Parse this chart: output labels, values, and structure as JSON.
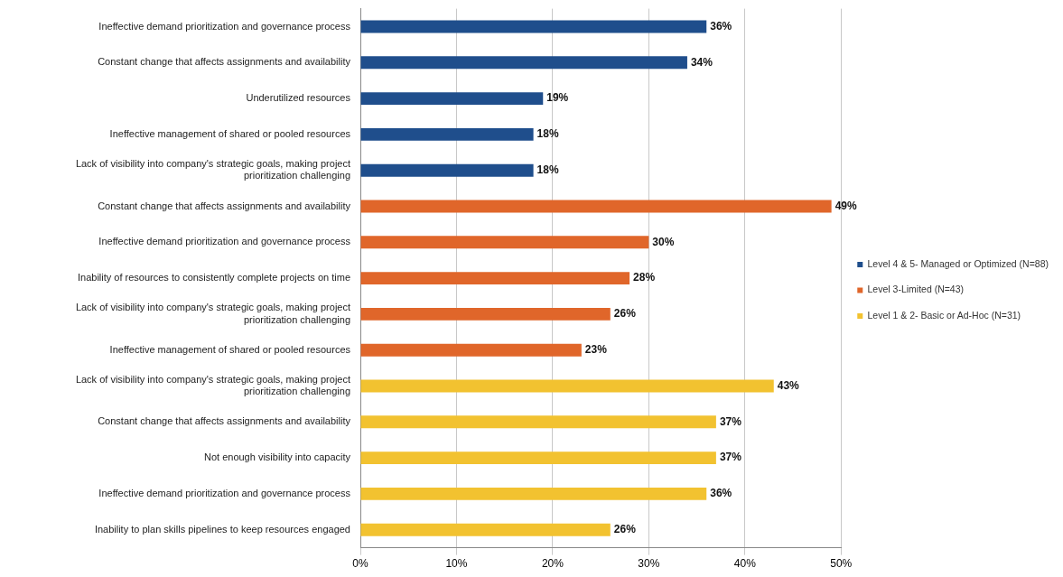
{
  "chart_data": {
    "type": "bar",
    "orientation": "horizontal",
    "categories": [
      "Ineffective demand prioritization and governance process",
      "Constant change that affects assignments and availability",
      "Underutilized resources",
      "Ineffective management of shared or pooled resources",
      "Lack of visibility into company's strategic goals, making project prioritization challenging",
      "Constant change that affects assignments and availability",
      "Ineffective demand prioritization and governance process",
      "Inability of resources to consistently complete projects on time",
      "Lack of visibility into company's strategic goals, making project prioritization challenging",
      "Ineffective management of shared or pooled resources",
      "Lack of visibility into company's strategic goals, making project prioritization challenging",
      "Constant change that affects assignments and availability",
      "Not enough visibility into capacity",
      "Ineffective demand prioritization and governance process",
      "Inability to plan skills pipelines to keep resources engaged"
    ],
    "series": [
      {
        "name": "Level 4 & 5- Managed or Optimized (N=88)",
        "color": "#1f4e8c",
        "values": [
          36,
          34,
          19,
          18,
          18,
          null,
          null,
          null,
          null,
          null,
          null,
          null,
          null,
          null,
          null
        ],
        "value_labels": [
          "36%",
          "34%",
          "19%",
          "18%",
          "18%",
          null,
          null,
          null,
          null,
          null,
          null,
          null,
          null,
          null,
          null
        ]
      },
      {
        "name": "Level 3-Limited (N=43)",
        "color": "#e0662a",
        "values": [
          null,
          null,
          null,
          null,
          null,
          49,
          30,
          28,
          26,
          23,
          null,
          null,
          null,
          null,
          null
        ],
        "value_labels": [
          null,
          null,
          null,
          null,
          null,
          "49%",
          "30%",
          "28%",
          "26%",
          "23%",
          null,
          null,
          null,
          null,
          null
        ]
      },
      {
        "name": "Level 1 & 2- Basic or Ad-Hoc (N=31)",
        "color": "#f2c230",
        "values": [
          null,
          null,
          null,
          null,
          null,
          null,
          null,
          null,
          null,
          null,
          43,
          37,
          37,
          36,
          26
        ],
        "value_labels": [
          null,
          null,
          null,
          null,
          null,
          null,
          null,
          null,
          null,
          null,
          "43%",
          "37%",
          "37%",
          "36%",
          "26%"
        ]
      }
    ],
    "xlim": [
      0,
      50
    ],
    "xticks": [
      {
        "value": 0,
        "label": "0%"
      },
      {
        "value": 10,
        "label": "10%"
      },
      {
        "value": 20,
        "label": "20%"
      },
      {
        "value": 30,
        "label": "30%"
      },
      {
        "value": 40,
        "label": "40%"
      },
      {
        "value": 50,
        "label": "50%"
      }
    ],
    "grid": "x",
    "legend": "right"
  }
}
